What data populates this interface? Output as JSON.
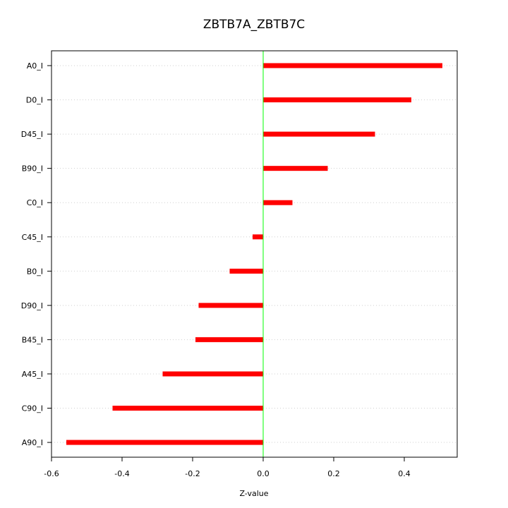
{
  "chart_data": {
    "type": "bar",
    "orientation": "horizontal",
    "title": "ZBTB7A_ZBTB7C",
    "xlabel": "Z-value",
    "ylabel": "",
    "categories": [
      "A0_I",
      "D0_I",
      "D45_I",
      "B90_I",
      "C0_I",
      "C45_I",
      "B0_I",
      "D90_I",
      "B45_I",
      "A45_I",
      "C90_I",
      "A90_I"
    ],
    "values": [
      0.508,
      0.42,
      0.317,
      0.183,
      0.083,
      -0.03,
      -0.095,
      -0.183,
      -0.192,
      -0.285,
      -0.427,
      -0.558
    ],
    "xticks": [
      -0.6,
      -0.4,
      -0.2,
      0.0,
      0.2,
      0.4
    ],
    "xtick_labels": [
      "-0.6",
      "-0.4",
      "-0.2",
      "0.0",
      "0.2",
      "0.4"
    ],
    "xlim": [
      -0.6,
      0.55
    ],
    "reference_line_x": 0,
    "grid": "horizontal dotted",
    "legend": "none",
    "colors": {
      "bar": "#ff0000",
      "reference_line": "#00ff00",
      "grid": "#cfcfcf",
      "axis": "#000000"
    }
  }
}
